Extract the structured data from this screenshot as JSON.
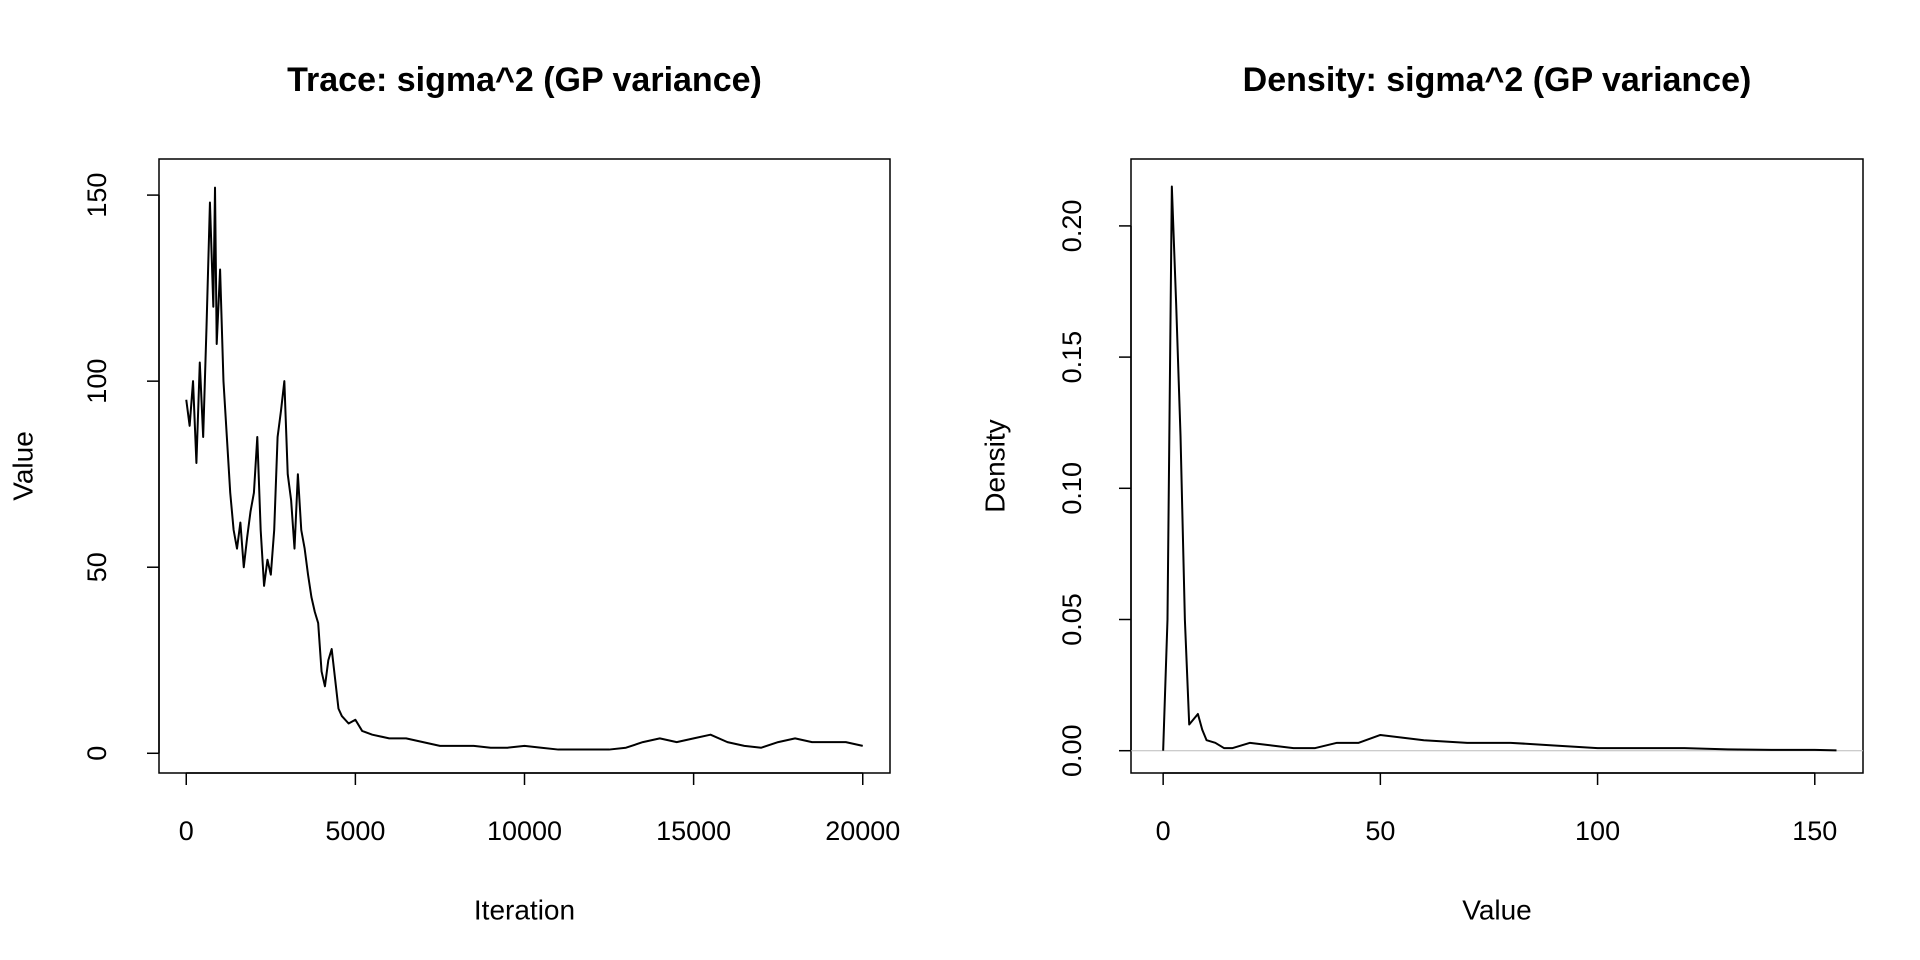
{
  "chart_data": [
    {
      "type": "line",
      "title": "Trace: sigma^2 (GP variance)",
      "xlabel": "Iteration",
      "ylabel": "Value",
      "color": "#000000",
      "x": [
        0,
        100,
        200,
        300,
        400,
        500,
        600,
        700,
        800,
        850,
        900,
        1000,
        1100,
        1200,
        1300,
        1400,
        1500,
        1600,
        1700,
        1800,
        1900,
        2000,
        2100,
        2200,
        2300,
        2400,
        2500,
        2600,
        2700,
        2800,
        2900,
        3000,
        3100,
        3200,
        3300,
        3400,
        3500,
        3600,
        3700,
        3800,
        3900,
        4000,
        4100,
        4200,
        4300,
        4400,
        4500,
        4600,
        4800,
        5000,
        5200,
        5500,
        6000,
        6500,
        7000,
        7500,
        8000,
        8500,
        9000,
        9500,
        10000,
        10500,
        11000,
        11500,
        12000,
        12500,
        13000,
        13500,
        14000,
        14500,
        15000,
        15500,
        16000,
        16500,
        17000,
        17500,
        18000,
        18500,
        19000,
        19500,
        20000
      ],
      "values": [
        95,
        88,
        100,
        78,
        105,
        85,
        115,
        148,
        120,
        152,
        110,
        130,
        100,
        85,
        70,
        60,
        55,
        62,
        50,
        58,
        65,
        70,
        85,
        60,
        45,
        52,
        48,
        60,
        85,
        92,
        100,
        75,
        68,
        55,
        75,
        60,
        55,
        48,
        42,
        38,
        35,
        22,
        18,
        25,
        28,
        20,
        12,
        10,
        8,
        9,
        6,
        5,
        4,
        4,
        3,
        2,
        2,
        2,
        1.5,
        1.5,
        2,
        1.5,
        1,
        1,
        1,
        1,
        1.5,
        3,
        4,
        3,
        4,
        5,
        3,
        2,
        1.5,
        3,
        4,
        3,
        3,
        3,
        2
      ],
      "xlim": [
        -806,
        20806
      ],
      "ylim": [
        -5.3,
        159.7
      ],
      "xticks": [
        0,
        5000,
        10000,
        15000,
        20000
      ],
      "yticks": [
        0,
        50,
        100,
        150
      ]
    },
    {
      "type": "line",
      "title": "Density: sigma^2 (GP variance)",
      "xlabel": "Value",
      "ylabel": "Density",
      "color": "#000000",
      "zero_line": true,
      "x": [
        0,
        1,
        2,
        3,
        4,
        5,
        6,
        7,
        8,
        9,
        10,
        12,
        14,
        16,
        20,
        25,
        30,
        35,
        40,
        45,
        50,
        55,
        60,
        70,
        80,
        90,
        100,
        110,
        120,
        130,
        140,
        150,
        155
      ],
      "values": [
        0,
        0.05,
        0.215,
        0.17,
        0.12,
        0.05,
        0.01,
        0.012,
        0.014,
        0.008,
        0.004,
        0.003,
        0.001,
        0.001,
        0.003,
        0.002,
        0.001,
        0.001,
        0.003,
        0.003,
        0.006,
        0.005,
        0.004,
        0.003,
        0.003,
        0.002,
        0.001,
        0.001,
        0.001,
        0.0005,
        0.0003,
        0.0003,
        0.0001
      ],
      "xlim": [
        -7.4,
        161.1
      ],
      "ylim": [
        -0.0085,
        0.2255
      ],
      "xticks": [
        0,
        50,
        100,
        150
      ],
      "yticks": [
        {
          "value": 0,
          "label": "0.00"
        },
        {
          "value": 0.05,
          "label": "0.05"
        },
        {
          "value": 0.1,
          "label": "0.10"
        },
        {
          "value": 0.15,
          "label": "0.15"
        },
        {
          "value": 0.2,
          "label": "0.20"
        }
      ]
    }
  ]
}
